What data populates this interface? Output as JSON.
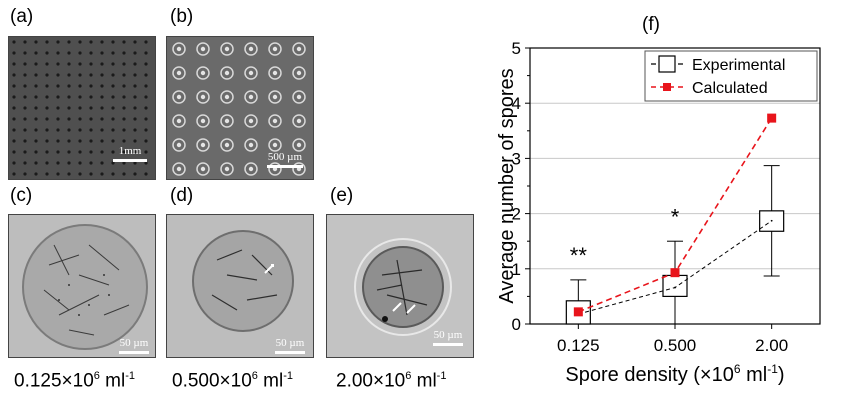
{
  "panels": {
    "a": {
      "label": "(a)",
      "scale_text": "1mm"
    },
    "b": {
      "label": "(b)",
      "scale_text": "500 µm"
    },
    "c": {
      "label": "(c)",
      "scale_text": "50 µm",
      "caption_num": "0.125×10",
      "caption_exp": "6",
      "caption_unit": " ml",
      "caption_unit_exp": "-1"
    },
    "d": {
      "label": "(d)",
      "scale_text": "50 µm",
      "caption_num": "0.500×10",
      "caption_exp": "6",
      "caption_unit": " ml",
      "caption_unit_exp": "-1"
    },
    "e": {
      "label": "(e)",
      "scale_text": "50 µm",
      "caption_num": "2.00×10",
      "caption_exp": "6",
      "caption_unit": " ml",
      "caption_unit_exp": "-1"
    },
    "f": {
      "label": "(f)"
    }
  },
  "colors": {
    "calculated": "#e8141b",
    "experimental": "#000000",
    "grid": "#c8c8c8",
    "micro_bg_dark": "#5a5a5a",
    "micro_bg_light": "#b9b9b9"
  },
  "chart_data": {
    "type": "box",
    "xlabel": "Spore density (×10",
    "xlabel_exp": "6",
    "xlabel_unit": " ml",
    "xlabel_unit_exp": "-1",
    "xlabel_close": ")",
    "ylabel": "Average number of spores",
    "ylim": [
      0,
      5
    ],
    "yticks": [
      "0",
      "1",
      "2",
      "3",
      "4",
      "5"
    ],
    "categories": [
      "0.125",
      "0.500",
      "2.00"
    ],
    "grid": true,
    "legend_position": "top-right",
    "series": [
      {
        "name": "Experimental",
        "style": "box-dashed",
        "boxes": [
          {
            "q1": 0.0,
            "q3": 0.42,
            "median": 0.18,
            "mean": 0.18,
            "whisker_low": 0.0,
            "whisker_high": 0.8
          },
          {
            "q1": 0.5,
            "q3": 0.88,
            "median": 0.68,
            "mean": 0.66,
            "whisker_low": 0.0,
            "whisker_high": 1.5
          },
          {
            "q1": 1.68,
            "q3": 2.05,
            "median": 1.87,
            "mean": 1.87,
            "whisker_low": 0.87,
            "whisker_high": 2.87
          }
        ]
      },
      {
        "name": "Calculated",
        "style": "line-square",
        "values": [
          0.22,
          0.93,
          3.73
        ]
      }
    ],
    "annotations": [
      {
        "text": "**",
        "category": "0.125",
        "y": 1.25
      },
      {
        "text": "*",
        "category": "0.500",
        "y": 1.95
      }
    ]
  }
}
